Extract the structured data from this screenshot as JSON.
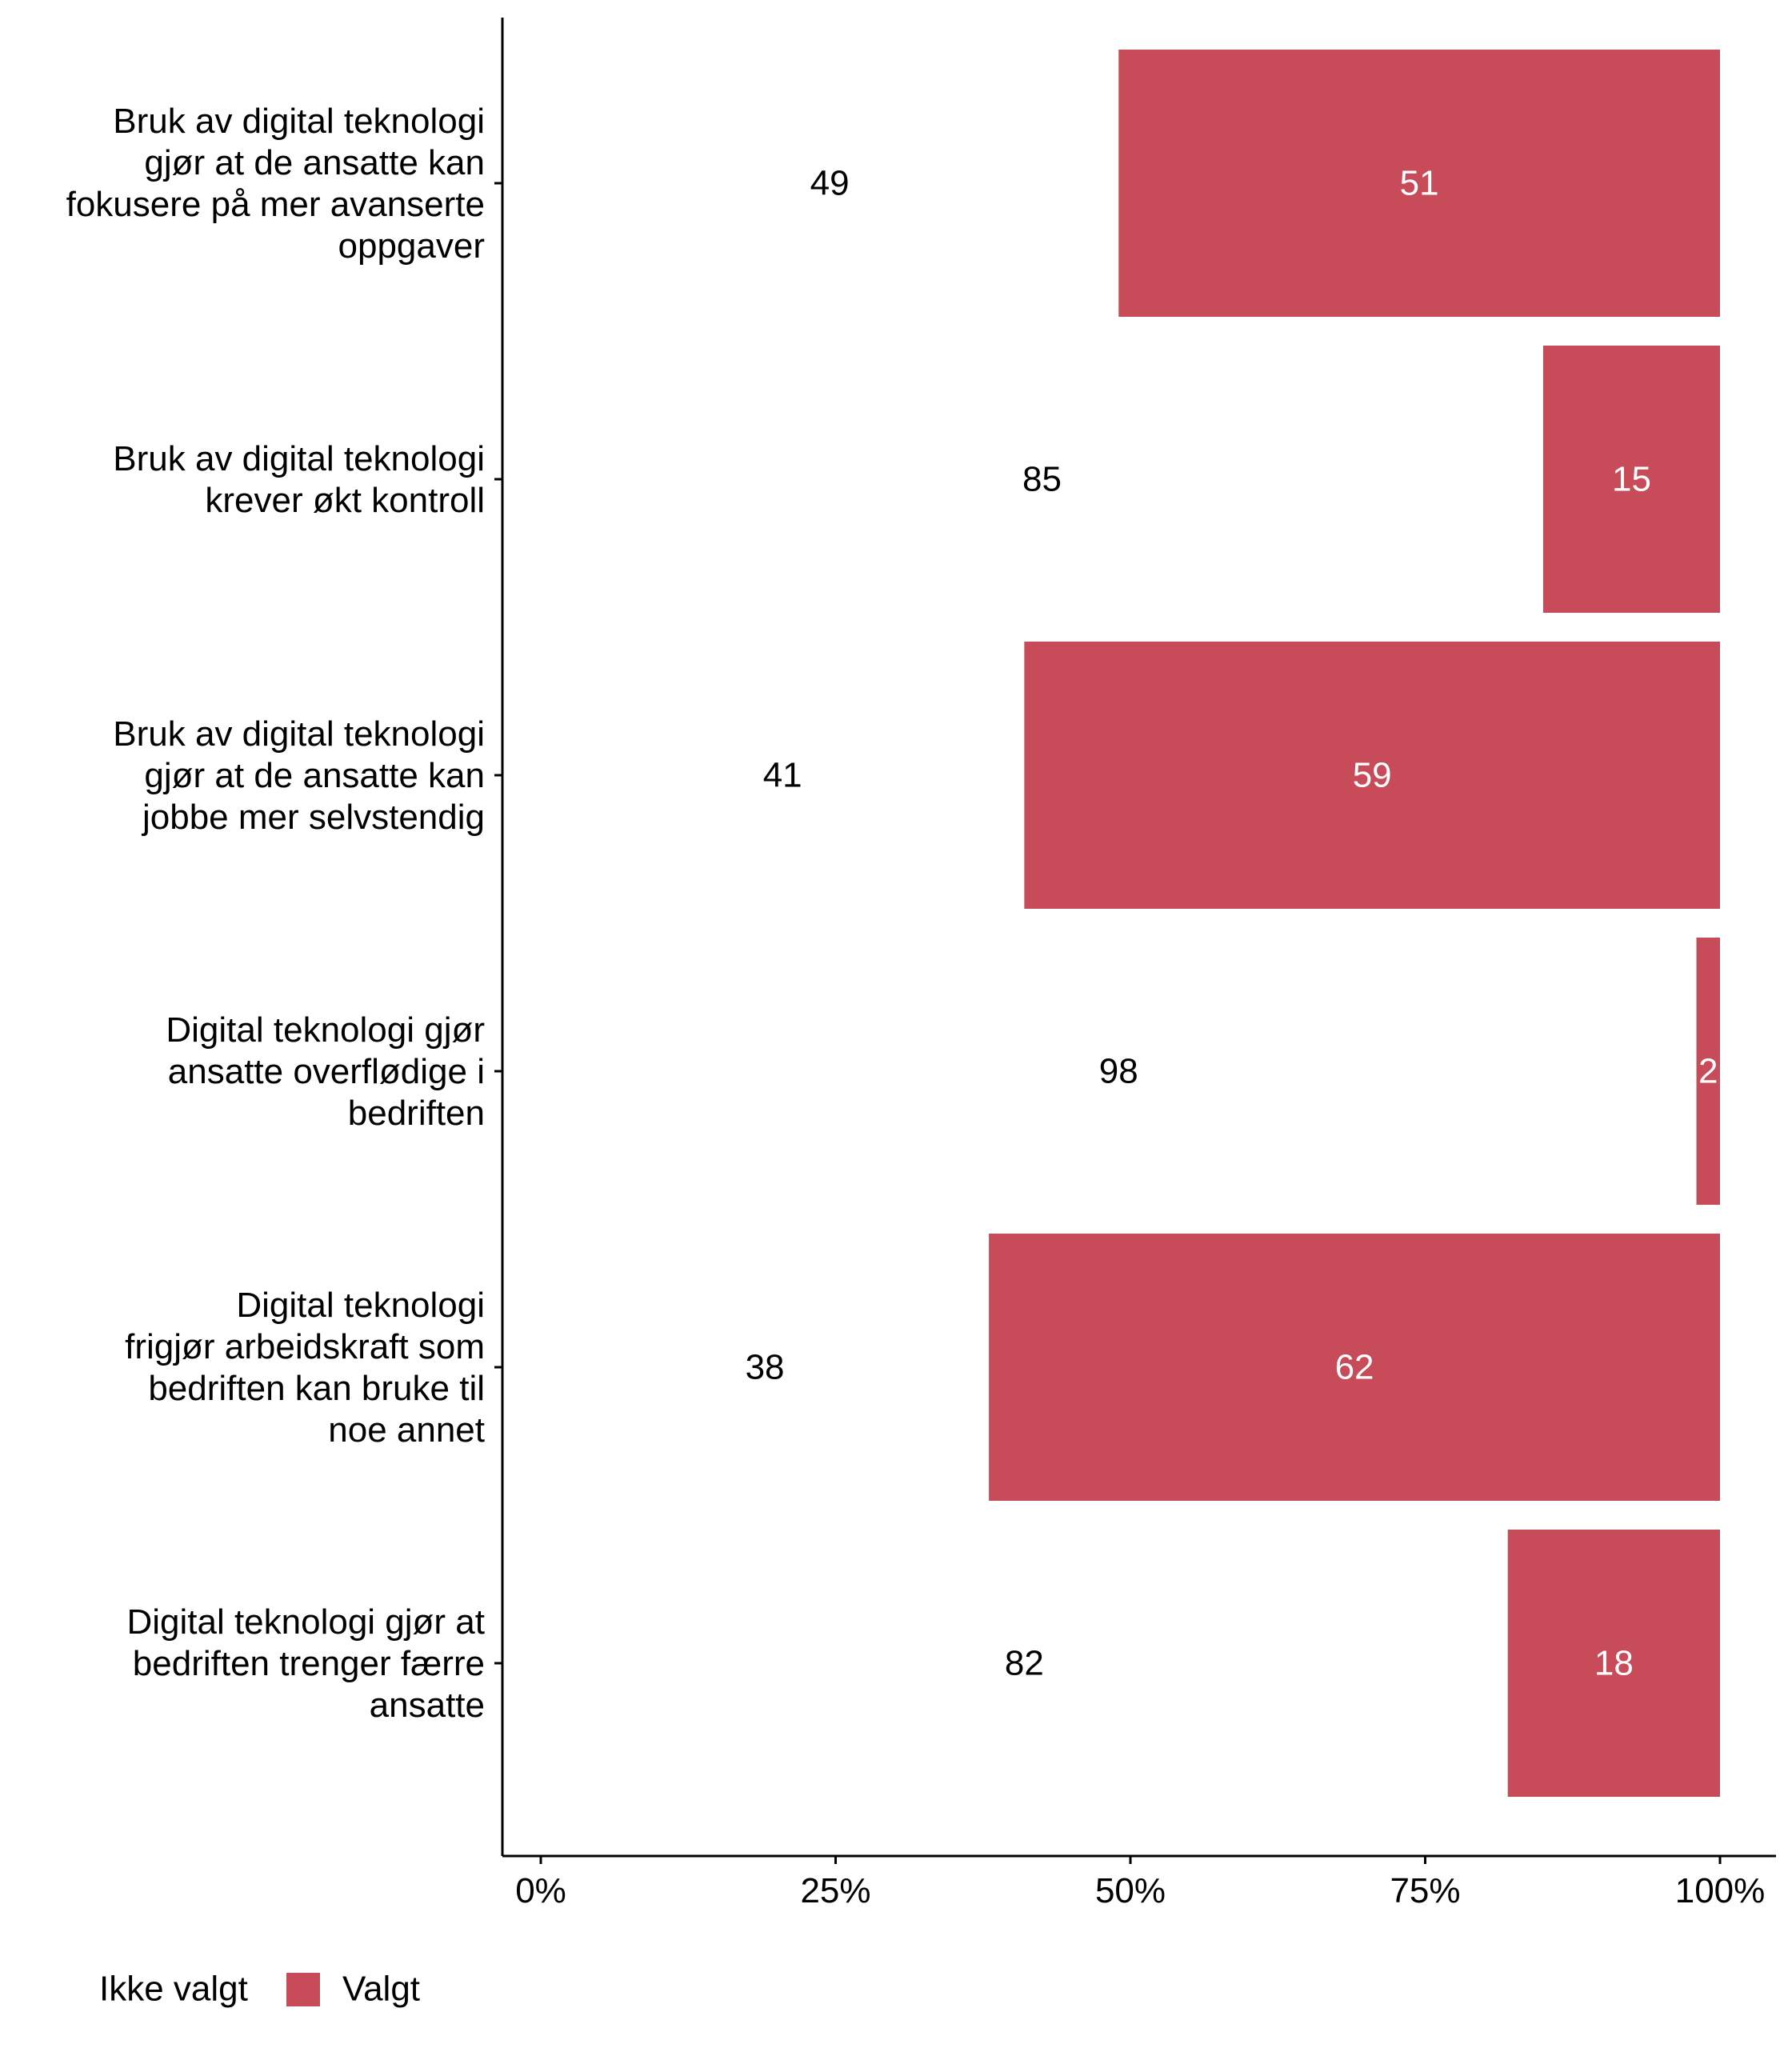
{
  "chart_data": {
    "type": "bar",
    "orientation": "horizontal",
    "stacked": true,
    "title": "",
    "xlabel": "",
    "ylabel": "",
    "xlim": [
      0,
      100
    ],
    "x_ticks": [
      "0%",
      "25%",
      "50%",
      "75%",
      "100%"
    ],
    "x_tick_values": [
      0,
      25,
      50,
      75,
      100
    ],
    "grid": false,
    "legend_position": "bottom-left",
    "categories": [
      [
        "Bruk av digital teknologi",
        "gjør at de ansatte kan",
        "fokusere på mer avanserte",
        "oppgaver"
      ],
      [
        "Bruk av digital teknologi",
        "krever økt kontroll"
      ],
      [
        "Bruk av digital teknologi",
        "gjør at de ansatte kan",
        "jobbe mer selvstendig"
      ],
      [
        "Digital teknologi gjør",
        "ansatte overflødige i",
        "bedriften"
      ],
      [
        "Digital teknologi",
        "frigjør arbeidskraft som",
        "bedriften kan bruke til",
        "noe annet"
      ],
      [
        "Digital teknologi gjør at",
        "bedriften trenger færre",
        "ansatte"
      ]
    ],
    "series": [
      {
        "name": "Ikke valgt",
        "color": "#ffffff",
        "label_color": "#000000",
        "values": [
          49,
          85,
          41,
          98,
          38,
          82
        ]
      },
      {
        "name": "Valgt",
        "color": "#c84b5a",
        "label_color": "#ffffff",
        "values": [
          51,
          15,
          59,
          2,
          62,
          18
        ]
      }
    ]
  }
}
